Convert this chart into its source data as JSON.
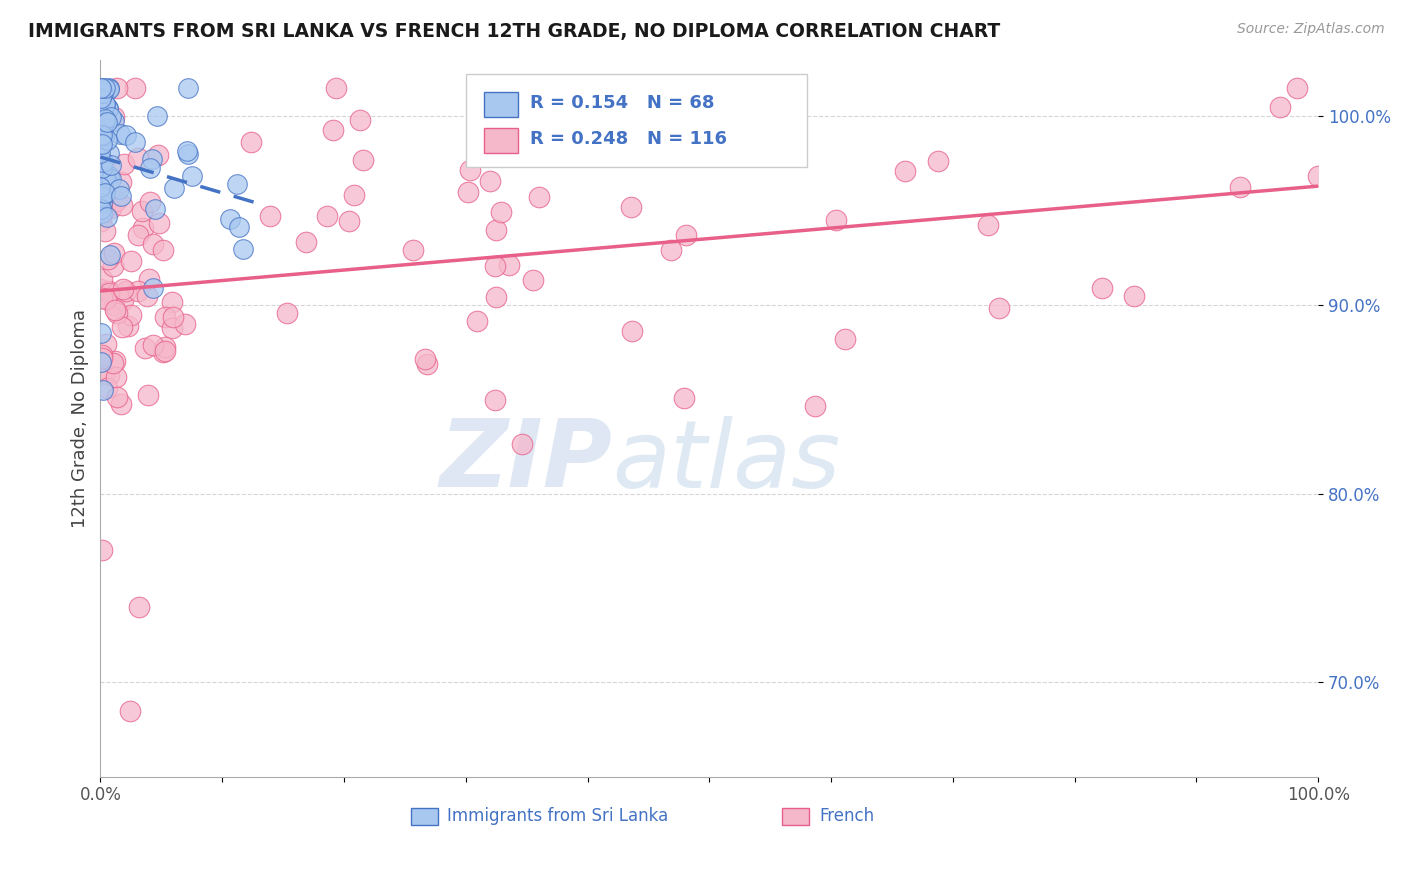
{
  "title": "IMMIGRANTS FROM SRI LANKA VS FRENCH 12TH GRADE, NO DIPLOMA CORRELATION CHART",
  "source_text": "Source: ZipAtlas.com",
  "ylabel": "12th Grade, No Diploma",
  "legend_label_1": "Immigrants from Sri Lanka",
  "legend_label_2": "French",
  "R1": 0.154,
  "N1": 68,
  "R2": 0.248,
  "N2": 116,
  "color_blue": "#A8C8F0",
  "color_pink": "#F5B8CB",
  "color_blue_line": "#4472C4",
  "color_pink_line": "#E8608A",
  "color_text_blue": "#4472C4",
  "xlim": [
    0.0,
    100.0
  ],
  "ylim": [
    65.0,
    103.0
  ],
  "watermark_zip": "ZIP",
  "watermark_atlas": "atlas",
  "background_color": "#FFFFFF"
}
